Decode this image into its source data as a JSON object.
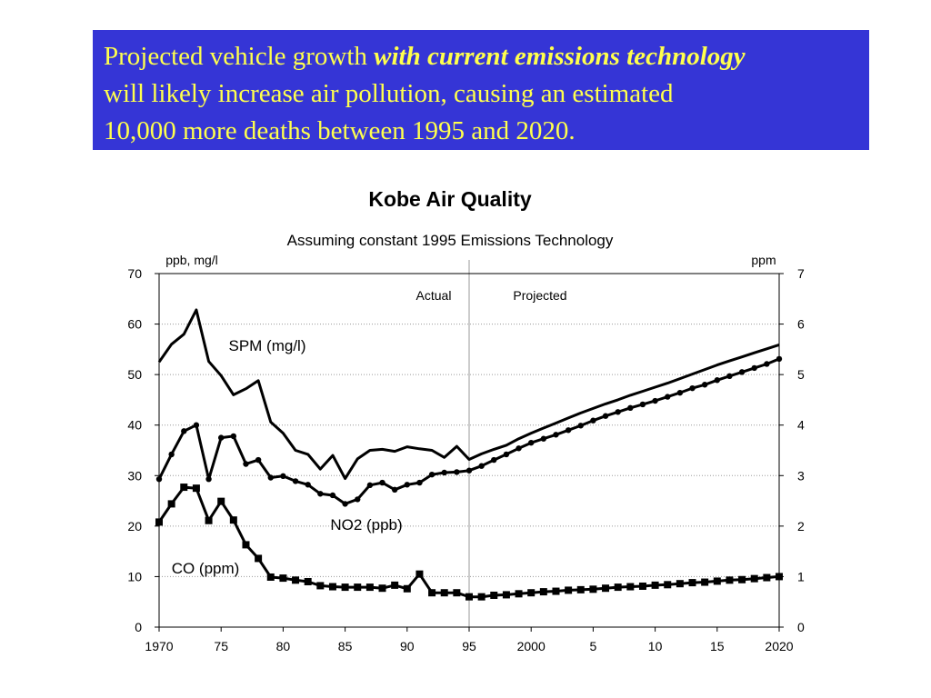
{
  "banner": {
    "line1_a": "Projected vehicle growth ",
    "line1_b": "with current emissions technology",
    "line2": "will likely increase air pollution, causing an estimated",
    "line3": "10,000 more deaths between 1995 and 2020."
  },
  "colors": {
    "banner_bg": "#3535d6",
    "banner_text": "#ffff4d",
    "series": "#000000"
  },
  "chart_data": {
    "type": "line",
    "title": "Kobe Air Quality",
    "subtitle": "Assuming constant 1995 Emissions Technology",
    "y_left_label": "ppb, mg/l",
    "y_right_label": "ppm",
    "ylim_left": [
      0,
      70
    ],
    "ylim_right": [
      0,
      7
    ],
    "y_left_ticks": [
      "0",
      "10",
      "20",
      "30",
      "40",
      "50",
      "60",
      "70"
    ],
    "y_right_ticks": [
      "0",
      "1",
      "2",
      "3",
      "4",
      "5",
      "6",
      "7"
    ],
    "xlim": [
      1970,
      2020
    ],
    "x_ticks": [
      {
        "x": 1970,
        "label": "1970"
      },
      {
        "x": 1975,
        "label": "75"
      },
      {
        "x": 1980,
        "label": "80"
      },
      {
        "x": 1985,
        "label": "85"
      },
      {
        "x": 1990,
        "label": "90"
      },
      {
        "x": 1995,
        "label": "95"
      },
      {
        "x": 2000,
        "label": "2000"
      },
      {
        "x": 2005,
        "label": "5"
      },
      {
        "x": 2010,
        "label": "10"
      },
      {
        "x": 2015,
        "label": "15"
      },
      {
        "x": 2020,
        "label": "2020"
      }
    ],
    "grid": "horizontal",
    "divider_x": 1995,
    "region_labels": {
      "actual": "Actual",
      "projected": "Projected"
    },
    "series": [
      {
        "name": "SPM (mg/l)",
        "axis": "left",
        "marker": "none",
        "x": [
          1970,
          1971,
          1972,
          1973,
          1974,
          1975,
          1976,
          1977,
          1978,
          1979,
          1980,
          1981,
          1982,
          1983,
          1984,
          1985,
          1986,
          1987,
          1988,
          1989,
          1990,
          1991,
          1992,
          1993,
          1994,
          1995,
          1996,
          1997,
          1998,
          1999,
          2000,
          2001,
          2002,
          2003,
          2004,
          2005,
          2006,
          2007,
          2008,
          2009,
          2010,
          2011,
          2012,
          2013,
          2014,
          2015,
          2016,
          2017,
          2018,
          2019,
          2020
        ],
        "y": [
          52.5,
          56,
          58,
          62.8,
          52.6,
          49.8,
          46,
          47.2,
          48.8,
          40.6,
          38.4,
          35,
          34.2,
          31.3,
          34,
          29.4,
          33.3,
          35,
          35.2,
          34.8,
          35.7,
          35.3,
          35,
          33.6,
          35.8,
          33.2,
          34.3,
          35.2,
          36,
          37.3,
          38.4,
          39.4,
          40.4,
          41.4,
          42.4,
          43.3,
          44.2,
          45,
          45.9,
          46.7,
          47.5,
          48.3,
          49.2,
          50.1,
          51,
          51.9,
          52.7,
          53.5,
          54.3,
          55.1,
          55.9
        ]
      },
      {
        "name": "NO2 (ppb)",
        "axis": "left",
        "marker": "circle",
        "x": [
          1970,
          1971,
          1972,
          1973,
          1974,
          1975,
          1976,
          1977,
          1978,
          1979,
          1980,
          1981,
          1982,
          1983,
          1984,
          1985,
          1986,
          1987,
          1988,
          1989,
          1990,
          1991,
          1992,
          1993,
          1994,
          1995,
          1996,
          1997,
          1998,
          1999,
          2000,
          2001,
          2002,
          2003,
          2004,
          2005,
          2006,
          2007,
          2008,
          2009,
          2010,
          2011,
          2012,
          2013,
          2014,
          2015,
          2016,
          2017,
          2018,
          2019,
          2020
        ],
        "y": [
          29.3,
          34.2,
          38.8,
          40,
          29.3,
          37.5,
          37.8,
          32.3,
          33.1,
          29.6,
          29.9,
          28.9,
          28.2,
          26.4,
          26.1,
          24.4,
          25.3,
          28.1,
          28.6,
          27.2,
          28.2,
          28.6,
          30.2,
          30.6,
          30.7,
          31,
          31.9,
          33.1,
          34.2,
          35.4,
          36.5,
          37.3,
          38.1,
          39,
          39.9,
          40.9,
          41.8,
          42.6,
          43.4,
          44.1,
          44.8,
          45.6,
          46.4,
          47.3,
          48,
          48.9,
          49.7,
          50.5,
          51.3,
          52.1,
          53.1
        ]
      },
      {
        "name": "CO (ppm)",
        "axis": "right",
        "marker": "square",
        "x": [
          1970,
          1971,
          1972,
          1973,
          1974,
          1975,
          1976,
          1977,
          1978,
          1979,
          1980,
          1981,
          1982,
          1983,
          1984,
          1985,
          1986,
          1987,
          1988,
          1989,
          1990,
          1991,
          1992,
          1993,
          1994,
          1995,
          1996,
          1997,
          1998,
          1999,
          2000,
          2001,
          2002,
          2003,
          2004,
          2005,
          2006,
          2007,
          2008,
          2009,
          2010,
          2011,
          2012,
          2013,
          2014,
          2015,
          2016,
          2017,
          2018,
          2019,
          2020
        ],
        "y": [
          2.08,
          2.44,
          2.77,
          2.75,
          2.11,
          2.49,
          2.12,
          1.63,
          1.36,
          0.99,
          0.97,
          0.93,
          0.9,
          0.82,
          0.8,
          0.79,
          0.79,
          0.79,
          0.77,
          0.83,
          0.76,
          1.05,
          0.68,
          0.68,
          0.68,
          0.6,
          0.6,
          0.63,
          0.64,
          0.66,
          0.68,
          0.7,
          0.71,
          0.73,
          0.74,
          0.75,
          0.77,
          0.79,
          0.8,
          0.81,
          0.83,
          0.84,
          0.86,
          0.88,
          0.89,
          0.91,
          0.93,
          0.94,
          0.96,
          0.98,
          1.0
        ]
      }
    ]
  }
}
